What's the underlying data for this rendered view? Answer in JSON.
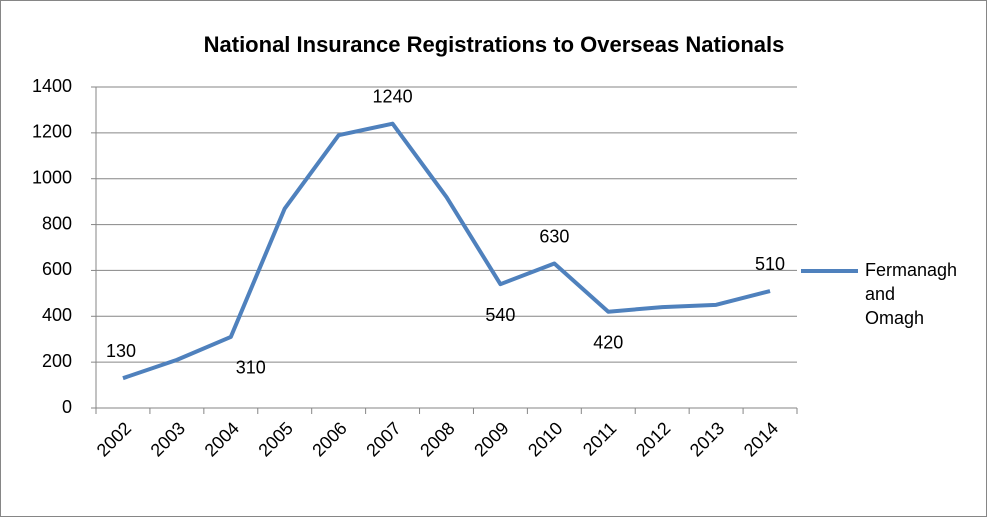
{
  "chart_data": {
    "type": "line",
    "title": "National Insurance Registrations to Overseas Nationals",
    "categories": [
      "2002",
      "2003",
      "2004",
      "2005",
      "2006",
      "2007",
      "2008",
      "2009",
      "2010",
      "2011",
      "2012",
      "2013",
      "2014"
    ],
    "series": [
      {
        "name": "Fermanagh and Omagh",
        "color": "#4f81bd",
        "values": [
          130,
          210,
          310,
          870,
          1190,
          1240,
          920,
          540,
          630,
          420,
          440,
          450,
          510
        ],
        "value_labels": [
          "130",
          null,
          "310",
          null,
          null,
          "1240",
          null,
          "540",
          "630",
          "420",
          null,
          null,
          "510"
        ]
      }
    ],
    "ylim": [
      0,
      1400
    ],
    "yticks": [
      0,
      200,
      400,
      600,
      800,
      1000,
      1200,
      1400
    ],
    "grid": true,
    "legend": "right"
  }
}
